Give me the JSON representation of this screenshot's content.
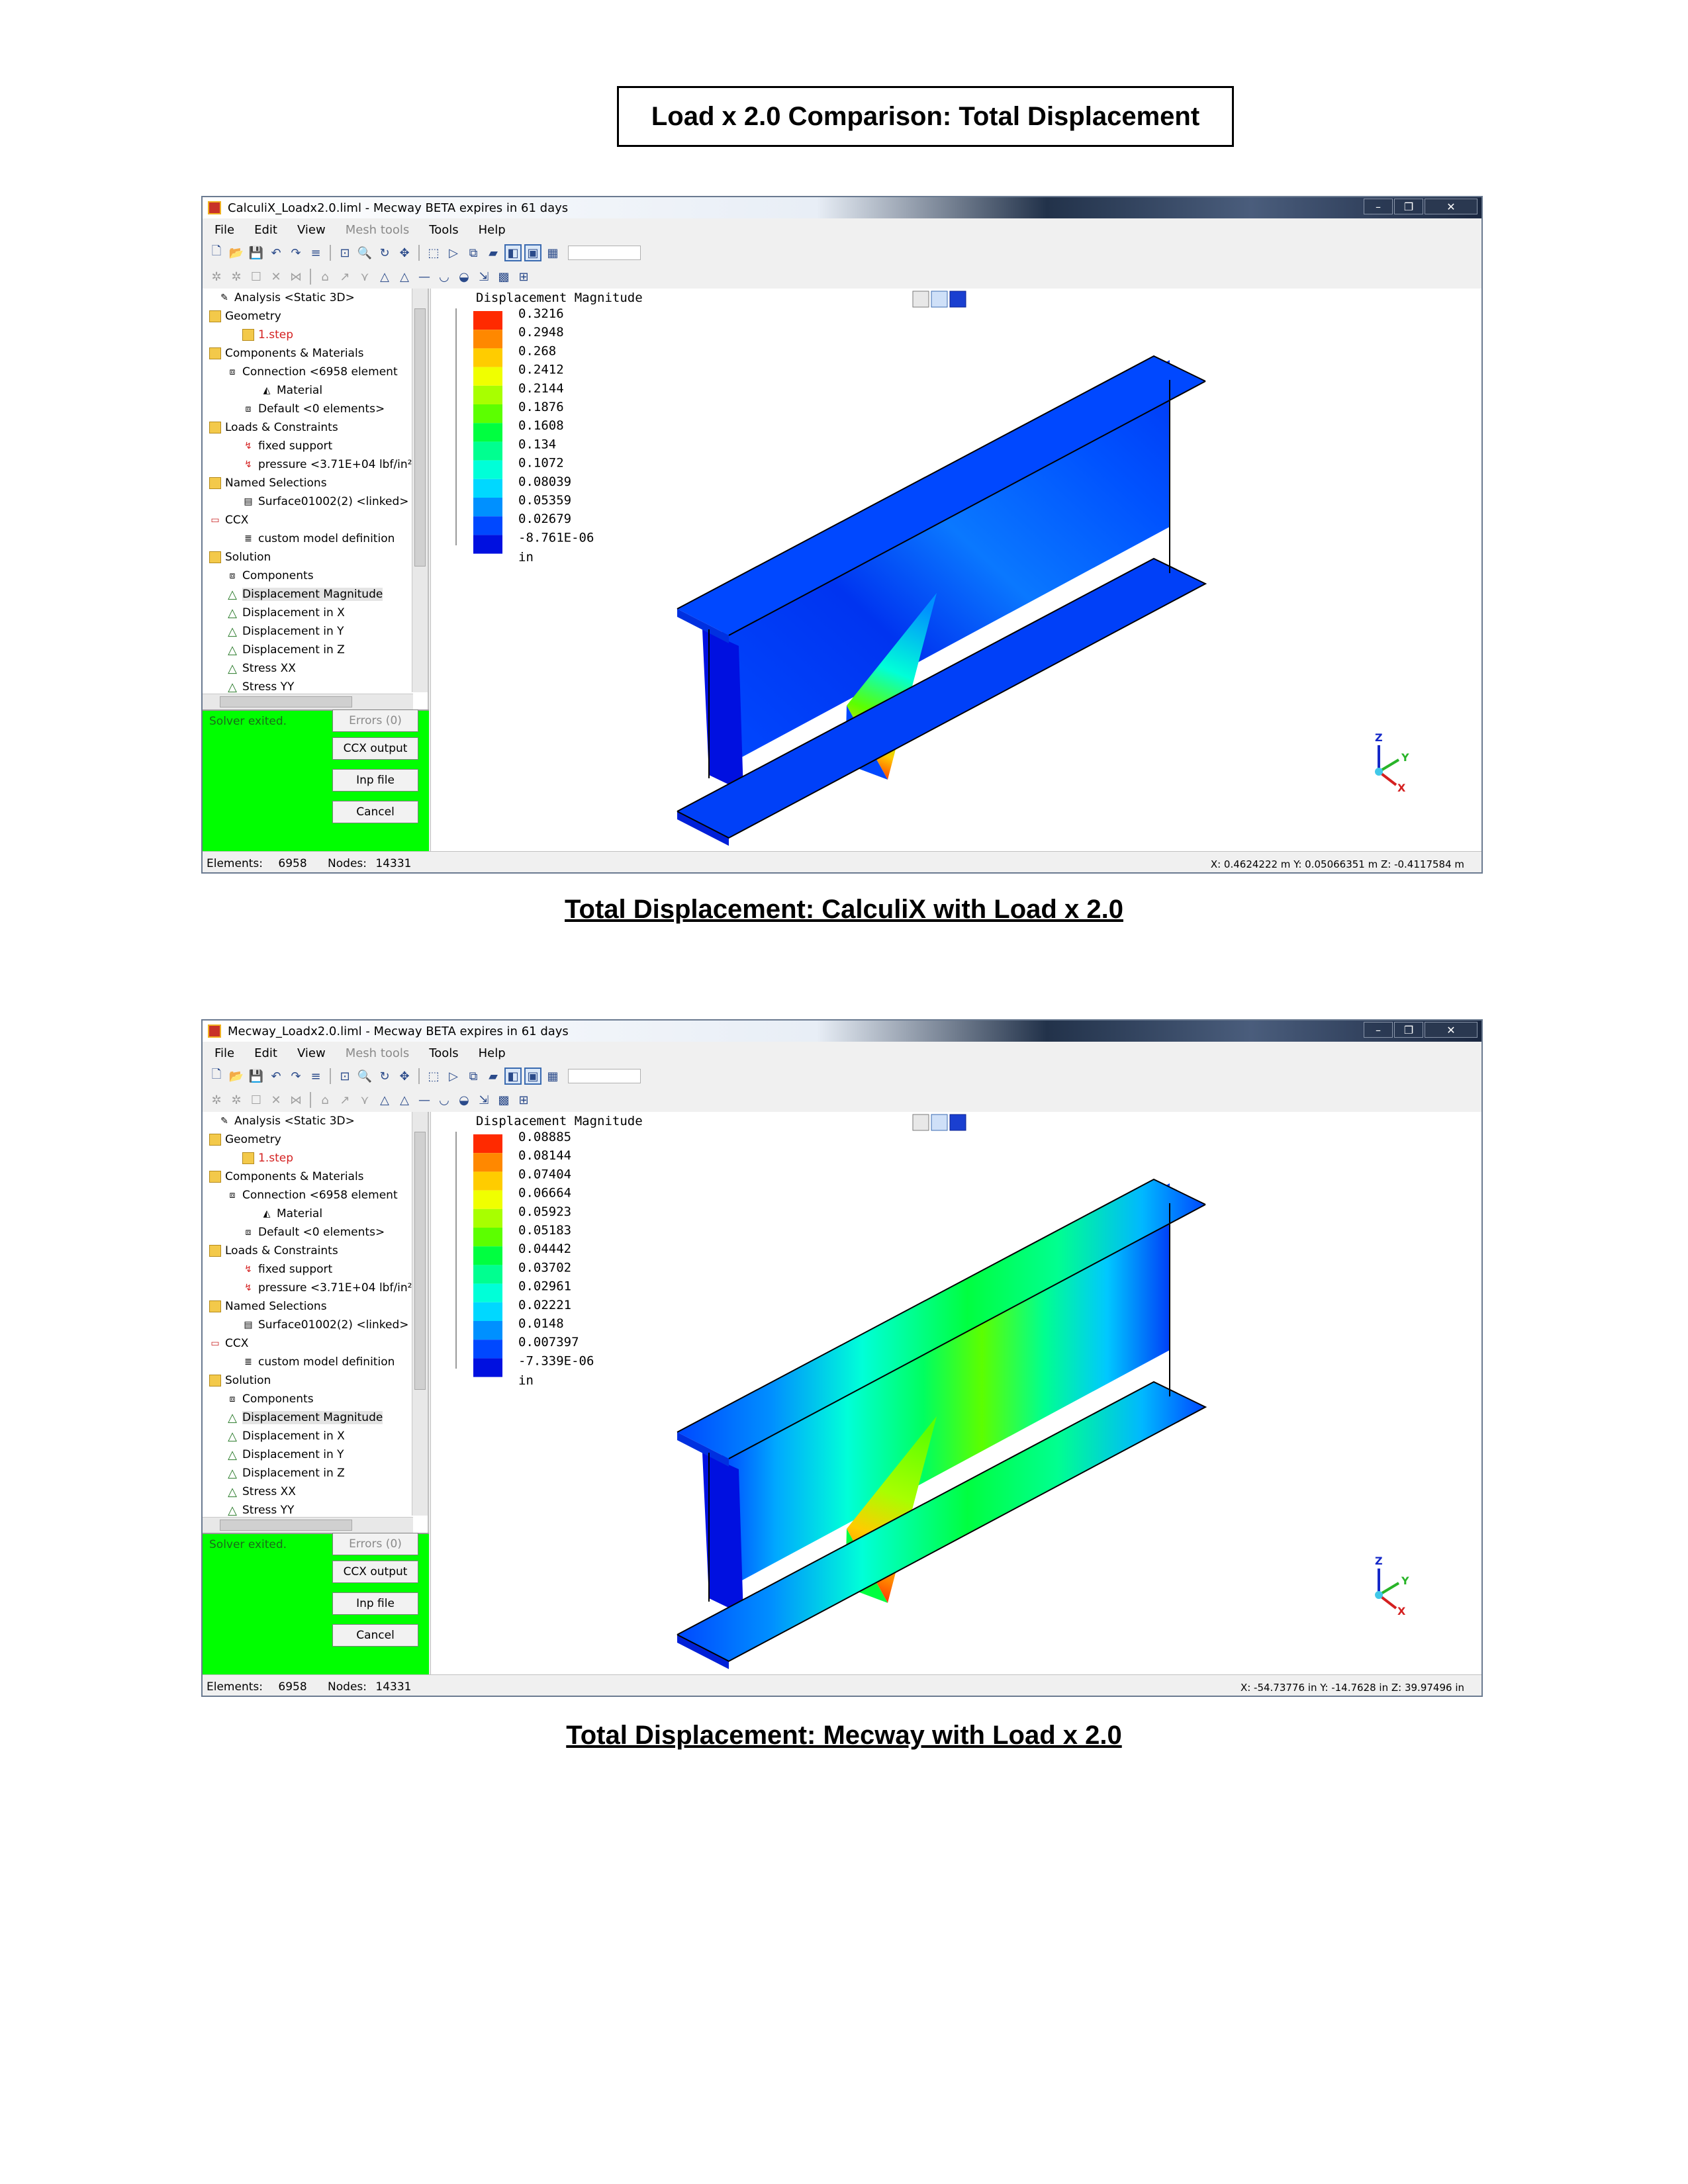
{
  "title": "Load x 2.0 Comparison: Total Displacement",
  "common": {
    "menu": [
      "File",
      "Edit",
      "View",
      "Mesh tools",
      "Tools",
      "Help"
    ],
    "tree": [
      "Analysis <Static 3D>",
      "Geometry",
      "1.step",
      "Components & Materials",
      "Connection <6958 element",
      "Material",
      "Default <0 elements>",
      "Loads & Constraints",
      "fixed support",
      "pressure <3.71E+04 lbf/in²",
      "Named Selections",
      "Surface01002(2) <linked>",
      "CCX",
      "custom model definition",
      "Solution",
      "Components",
      "Displacement Magnitude",
      "Displacement in X",
      "Displacement in Y",
      "Displacement in Z",
      "Stress XX",
      "Stress YY"
    ],
    "solver_status": "Solver exited.",
    "buttons": [
      "Errors (0)",
      "CCX output",
      "Inp file",
      "Cancel"
    ],
    "legend_title": "Displacement Magnitude",
    "legend_unit": "in",
    "elements_label": "Elements:",
    "elements_value": "6958",
    "nodes_label": "Nodes:",
    "nodes_value": "14331",
    "colors": [
      "#ff2a00",
      "#ff8800",
      "#ffcc00",
      "#f0ff00",
      "#a8ff00",
      "#5cff00",
      "#00ff40",
      "#00ff90",
      "#00ffd8",
      "#00d8ff",
      "#0090ff",
      "#0048ff",
      "#0010e0"
    ]
  },
  "windows": [
    {
      "window_title": "CalculiX_Loadx2.0.liml - Mecway BETA expires in 61 days",
      "legend_values": [
        "0.3216",
        "0.2948",
        "0.268",
        "0.2412",
        "0.2144",
        "0.1876",
        "0.1608",
        "0.134",
        "0.1072",
        "0.08039",
        "0.05359",
        "0.02679",
        "-8.761E-06"
      ],
      "coords": "X: 0.4624222 m Y: 0.05066351 m Z: -0.4117584 m",
      "caption": "Total Displacement:  CalculiX with Load x 2.0"
    },
    {
      "window_title": "Mecway_Loadx2.0.liml - Mecway BETA expires in 61 days",
      "legend_values": [
        "0.08885",
        "0.08144",
        "0.07404",
        "0.06664",
        "0.05923",
        "0.05183",
        "0.04442",
        "0.03702",
        "0.02961",
        "0.02221",
        "0.0148",
        "0.007397",
        "-7.339E-06"
      ],
      "coords": "X: -54.73776 in Y: -14.7628 in Z: 39.97496 in",
      "caption": "Total Displacement:  Mecway with Load x 2.0"
    }
  ]
}
